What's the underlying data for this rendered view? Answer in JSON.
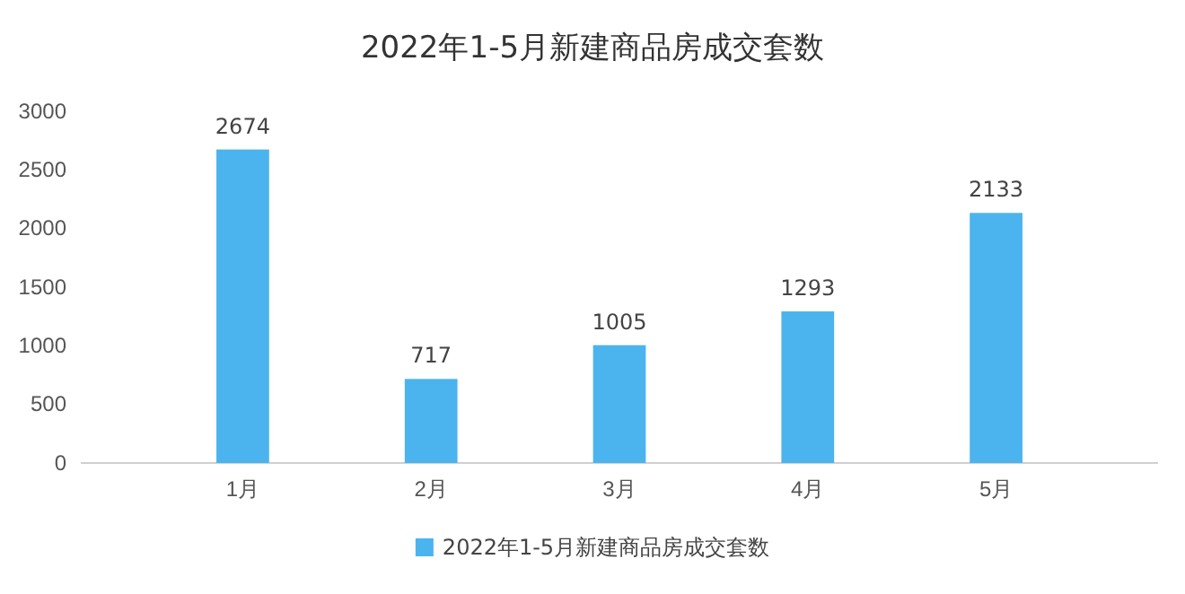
{
  "chart_data": {
    "type": "bar",
    "title": "2022年1-5月新建商品房成交套数",
    "categories": [
      "1月",
      "2月",
      "3月",
      "4月",
      "5月"
    ],
    "series": [
      {
        "name": "2022年1-5月新建商品房成交套数",
        "color": "#4bb4ee",
        "values": [
          2674,
          717,
          1005,
          1293,
          2133
        ]
      }
    ],
    "ylim": [
      0,
      3000
    ],
    "yticks": [
      0,
      500,
      1000,
      1500,
      2000,
      2500,
      3000
    ],
    "data_labels": true,
    "legend": "bottom"
  }
}
